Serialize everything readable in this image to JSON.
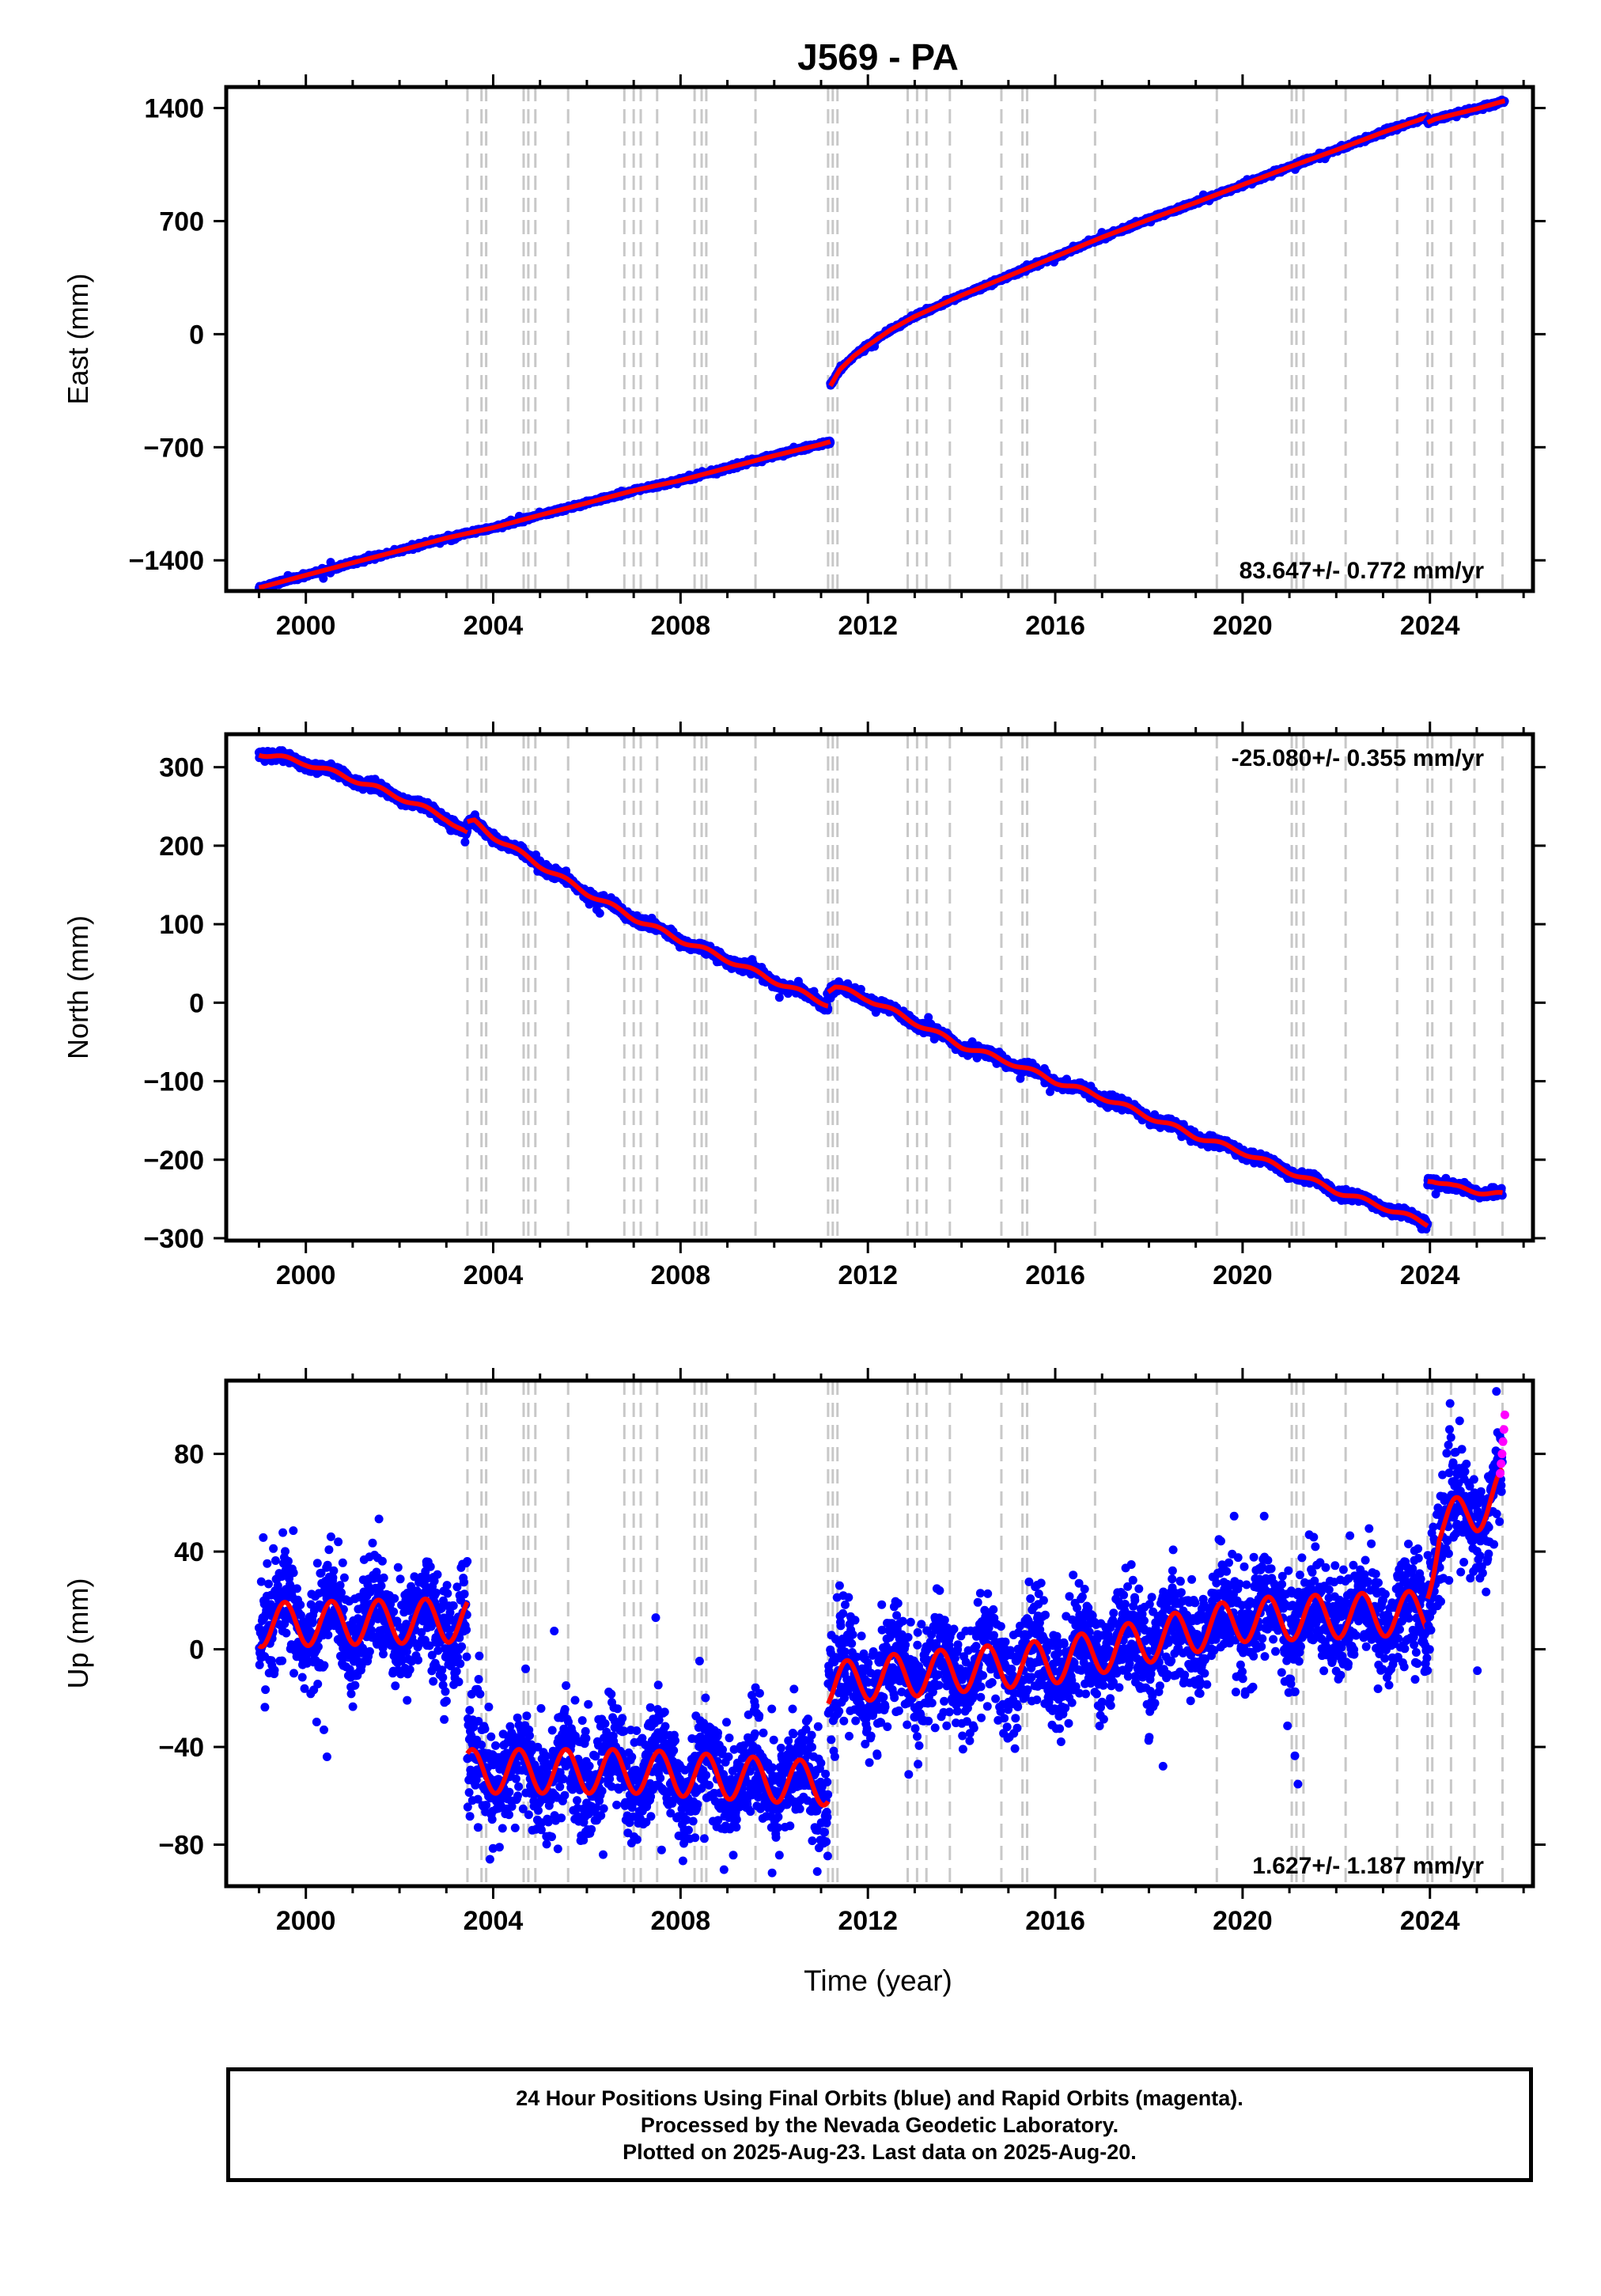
{
  "title": "J569 - PA",
  "xlabel": "Time (year)",
  "colors": {
    "final_orbits": "#0000ff",
    "rapid_orbits": "#ff00ff",
    "model": "#ff0000",
    "offsets": "#c8c8c8"
  },
  "chart_data": [
    {
      "type": "scatter",
      "name": "east",
      "ylabel": "East (mm)",
      "rate_text": "83.647+/- 0.772 mm/yr",
      "xlim": [
        1998.3,
        2026.2
      ],
      "ylim": [
        -1590,
        1530
      ],
      "xticks": [
        2000,
        2004,
        2008,
        2012,
        2016,
        2020,
        2024
      ],
      "yticks": [
        -1400,
        -700,
        0,
        700,
        1400
      ],
      "ytick_labels": [
        "−1400",
        "−700",
        "0",
        "700",
        "1400"
      ],
      "offset_years": [
        2003.45,
        2003.75,
        2003.85,
        2004.65,
        2004.75,
        2004.9,
        2005.6,
        2006.8,
        2007.0,
        2007.15,
        2007.5,
        2008.3,
        2008.45,
        2008.55,
        2009.6,
        2011.15,
        2011.25,
        2011.35,
        2012.85,
        2013.05,
        2013.25,
        2013.75,
        2014.85,
        2015.3,
        2015.4,
        2016.85,
        2019.45,
        2021.05,
        2021.15,
        2021.3,
        2022.2,
        2023.3,
        2023.95,
        2024.05,
        2024.45,
        2024.95,
        2025.55
      ],
      "segments": [
        {
          "x": [
            1999.0,
            2000.0,
            2001.0,
            2002.0,
            2003.0,
            2004.0,
            2005.0,
            2006.0,
            2007.0,
            2008.0,
            2009.0,
            2010.0,
            2011.0,
            2011.2
          ],
          "y": [
            -1570,
            -1492,
            -1415,
            -1340,
            -1262,
            -1198,
            -1120,
            -1045,
            -968,
            -905,
            -828,
            -752,
            -682,
            -665
          ]
        },
        {
          "x": [
            2011.2,
            2011.4,
            2011.7,
            2012.0,
            2012.5,
            2013.0,
            2014.0,
            2015.0,
            2016.0,
            2017.0,
            2018.0,
            2019.0,
            2020.0,
            2021.0,
            2022.0,
            2023.0,
            2023.95
          ],
          "y": [
            -320,
            -220,
            -135,
            -70,
            30,
            110,
            240,
            360,
            480,
            600,
            710,
            815,
            925,
            1035,
            1140,
            1250,
            1345
          ]
        },
        {
          "x": [
            2023.95,
            2024.1,
            2024.5,
            2025.0,
            2025.6
          ],
          "y": [
            1310,
            1330,
            1360,
            1395,
            1445
          ]
        }
      ],
      "noise_mm": 6,
      "seasonal_mm": 0
    },
    {
      "type": "scatter",
      "name": "north",
      "ylabel": "North (mm)",
      "rate_text": "-25.080+/- 0.355 mm/yr",
      "xlim": [
        1998.3,
        2026.2
      ],
      "ylim": [
        -303,
        342
      ],
      "xticks": [
        2000,
        2004,
        2008,
        2012,
        2016,
        2020,
        2024
      ],
      "yticks": [
        -300,
        -200,
        -100,
        0,
        100,
        200,
        300
      ],
      "ytick_labels": [
        "−300",
        "−200",
        "−100",
        "0",
        "100",
        "200",
        "300"
      ],
      "offset_years": [
        2003.45,
        2003.75,
        2003.85,
        2004.65,
        2004.75,
        2004.9,
        2005.6,
        2006.8,
        2007.0,
        2007.15,
        2007.5,
        2008.3,
        2008.45,
        2008.55,
        2009.6,
        2011.15,
        2011.25,
        2011.35,
        2012.85,
        2013.05,
        2013.25,
        2013.75,
        2014.85,
        2015.3,
        2015.4,
        2016.85,
        2019.45,
        2021.05,
        2021.15,
        2021.3,
        2022.2,
        2023.3,
        2023.95,
        2024.05,
        2024.45,
        2024.95,
        2025.55
      ],
      "segments": [
        {
          "x": [
            1999.0,
            2000.0,
            2001.0,
            2002.0,
            2003.0,
            2003.45
          ],
          "y": [
            318,
            305,
            285,
            262,
            235,
            215
          ]
        },
        {
          "x": [
            2003.45,
            2003.6,
            2004.0,
            2005.0,
            2006.0,
            2007.0,
            2008.0,
            2009.0,
            2010.0,
            2011.15
          ],
          "y": [
            228,
            230,
            212,
            175,
            140,
            108,
            80,
            55,
            28,
            -2
          ]
        },
        {
          "x": [
            2011.15,
            2011.3,
            2012.0,
            2013.0,
            2014.0,
            2015.0,
            2016.0,
            2017.0,
            2018.0,
            2019.0,
            2020.0,
            2021.0,
            2022.0,
            2023.0,
            2023.95
          ],
          "y": [
            16,
            20,
            5,
            -25,
            -55,
            -75,
            -100,
            -120,
            -145,
            -170,
            -190,
            -215,
            -240,
            -260,
            -282
          ]
        },
        {
          "x": [
            2023.95,
            2024.05,
            2024.5,
            2025.0,
            2025.55
          ],
          "y": [
            -225,
            -225,
            -235,
            -240,
            -245
          ]
        }
      ],
      "noise_mm": 3,
      "seasonal_mm": 3
    },
    {
      "type": "scatter",
      "name": "up",
      "ylabel": "Up (mm)",
      "rate_text": "1.627+/- 1.187 mm/yr",
      "xlim": [
        1998.3,
        2026.2
      ],
      "ylim": [
        -97,
        110
      ],
      "xticks": [
        2000,
        2004,
        2008,
        2012,
        2016,
        2020,
        2024
      ],
      "yticks": [
        -80,
        -40,
        0,
        40,
        80
      ],
      "ytick_labels": [
        "−80",
        "−40",
        "0",
        "40",
        "80"
      ],
      "offset_years": [
        2003.45,
        2003.75,
        2003.85,
        2004.65,
        2004.75,
        2004.9,
        2005.6,
        2006.8,
        2007.0,
        2007.15,
        2007.5,
        2008.3,
        2008.45,
        2008.55,
        2009.6,
        2011.15,
        2011.25,
        2011.35,
        2012.85,
        2013.05,
        2013.25,
        2013.75,
        2014.85,
        2015.3,
        2015.4,
        2016.85,
        2019.45,
        2021.05,
        2021.15,
        2021.3,
        2022.2,
        2023.3,
        2023.95,
        2024.05,
        2024.45,
        2024.95,
        2025.55
      ],
      "segments": [
        {
          "x": [
            1999.0,
            2003.45
          ],
          "y": [
            10,
            12
          ]
        },
        {
          "x": [
            2003.45,
            2007.0,
            2011.15
          ],
          "y": [
            -50,
            -50,
            -55
          ]
        },
        {
          "x": [
            2011.15,
            2012.0,
            2016.0,
            2020.0,
            2023.95
          ],
          "y": [
            -15,
            -12,
            -5,
            12,
            15
          ]
        },
        {
          "x": [
            2023.95,
            2024.2,
            2025.0,
            2025.55
          ],
          "y": [
            28,
            50,
            57,
            65
          ]
        }
      ],
      "noise_mm": 11,
      "seasonal_mm": 9,
      "rapid_points": {
        "x": [
          2025.5,
          2025.52,
          2025.54,
          2025.56,
          2025.58,
          2025.6
        ],
        "y": [
          72,
          76,
          80,
          85,
          90,
          96
        ]
      }
    }
  ],
  "footer": {
    "line1": "24 Hour Positions Using Final Orbits (blue) and Rapid Orbits (magenta).",
    "line2": "Processed by the Nevada Geodetic Laboratory.",
    "line3": "Plotted on 2025-Aug-23. Last data on 2025-Aug-20."
  }
}
